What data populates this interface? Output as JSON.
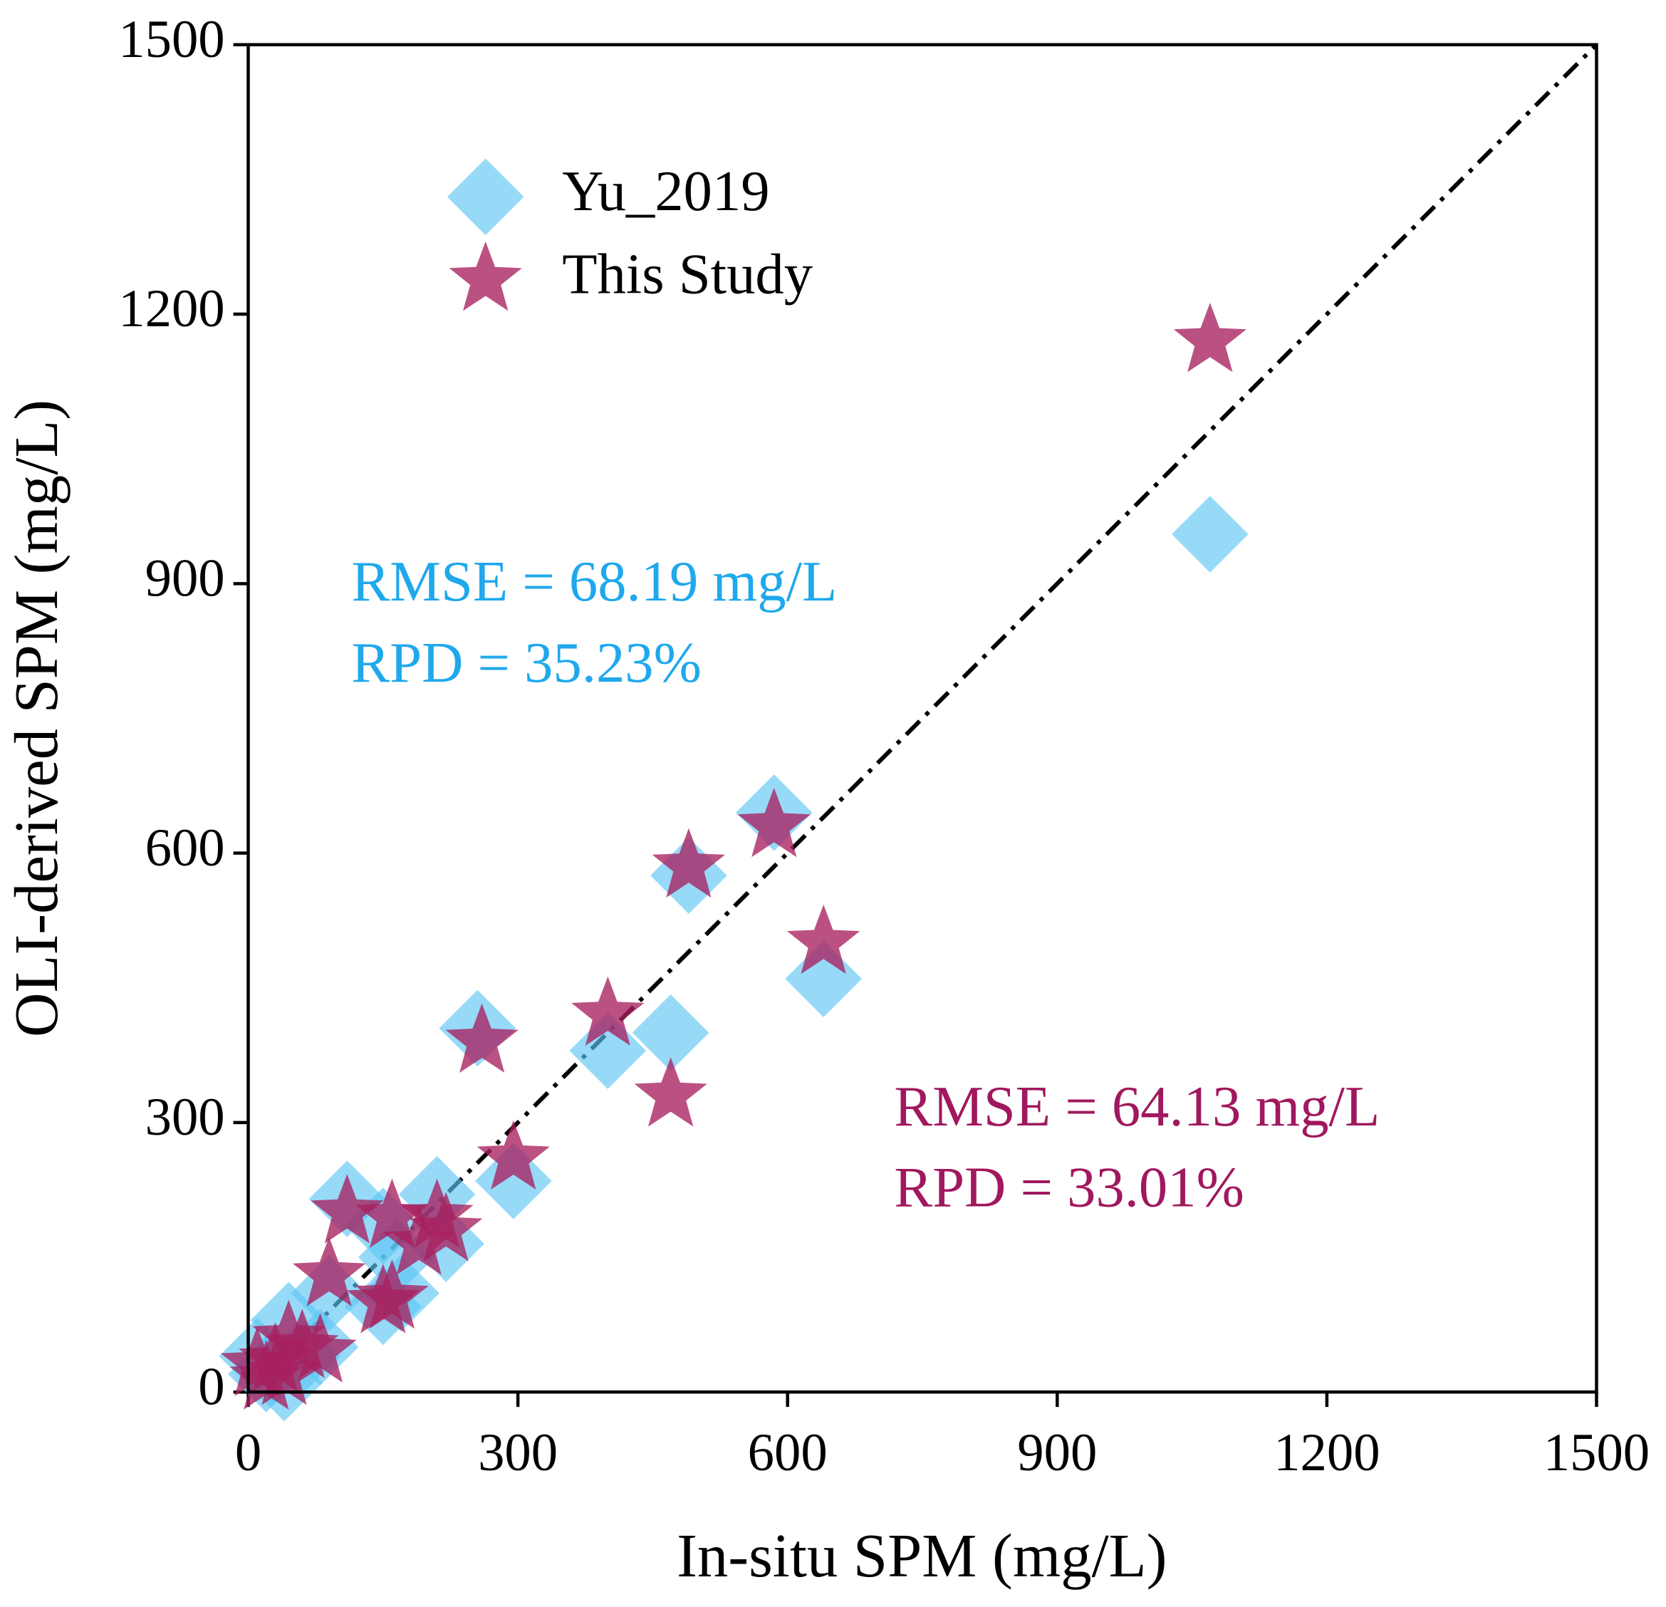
{
  "chart_data": {
    "type": "scatter",
    "x_label": "In-situ SPM (mg/L)",
    "y_label": "OLI-derived SPM (mg/L)",
    "xlim": [
      0,
      1500
    ],
    "ylim": [
      0,
      1500
    ],
    "xticks": [
      0,
      300,
      600,
      900,
      1200,
      1500
    ],
    "yticks": [
      0,
      300,
      600,
      900,
      1200,
      1500
    ],
    "legend": "upper left",
    "series": [
      {
        "name": "Yu_2019",
        "color": "#5ec6f5",
        "marker": "diamond",
        "x": [
          1070,
          585,
          490,
          470,
          640,
          255,
          400,
          295,
          110,
          210,
          150,
          220,
          165,
          150,
          170,
          90,
          45,
          80,
          60,
          30,
          20,
          10,
          40
        ],
        "values": [
          955,
          645,
          575,
          400,
          460,
          405,
          380,
          235,
          215,
          220,
          185,
          165,
          150,
          95,
          110,
          110,
          80,
          50,
          40,
          30,
          20,
          40,
          10
        ]
      },
      {
        "name": "This Study",
        "color": "#a8205f",
        "marker": "star",
        "x": [
          1070,
          585,
          490,
          640,
          400,
          470,
          260,
          295,
          110,
          160,
          210,
          220,
          190,
          150,
          160,
          90,
          45,
          80,
          60,
          30,
          20,
          10,
          40
        ],
        "values": [
          1170,
          630,
          585,
          500,
          420,
          330,
          390,
          260,
          200,
          195,
          195,
          180,
          165,
          100,
          105,
          130,
          60,
          45,
          50,
          35,
          15,
          30,
          20
        ]
      }
    ],
    "annotations": [
      {
        "text": "RMSE = 68.19 mg/L",
        "color": "#1fa8ec"
      },
      {
        "text": "RPD = 35.23%",
        "color": "#1fa8ec"
      },
      {
        "text": "RMSE = 64.13 mg/L",
        "color": "#a0185e"
      },
      {
        "text": "RPD = 33.01%",
        "color": "#a0185e"
      }
    ]
  }
}
